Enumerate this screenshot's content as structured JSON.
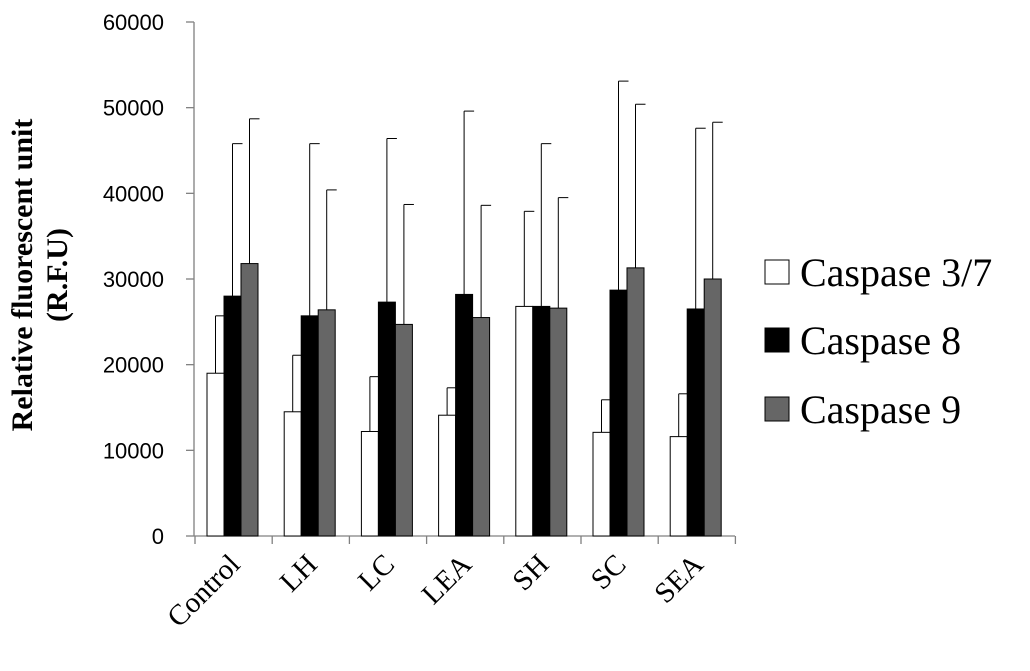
{
  "chart_data": {
    "type": "bar",
    "title": "",
    "xlabel": "",
    "ylabel": [
      "Relative fluorescent unit",
      "(R.F.U)"
    ],
    "ylim": [
      0,
      60000
    ],
    "yticks": [
      0,
      10000,
      20000,
      30000,
      40000,
      50000,
      60000
    ],
    "categories": [
      "Control",
      "LH",
      "LC",
      "LEA",
      "SH",
      "SC",
      "SEA"
    ],
    "series": [
      {
        "name": "Caspase 3/7",
        "color": "#ffffff",
        "values": [
          19000,
          14500,
          12200,
          14100,
          26800,
          12100,
          11600
        ],
        "error": [
          6700,
          6600,
          6400,
          3200,
          11100,
          3800,
          5000
        ]
      },
      {
        "name": "Caspase 8",
        "color": "#000000",
        "values": [
          28000,
          25700,
          27300,
          28200,
          26800,
          28700,
          26500
        ],
        "error": [
          17800,
          20100,
          19100,
          21400,
          19000,
          24400,
          21100
        ]
      },
      {
        "name": "Caspase 9",
        "color": "#666666",
        "values": [
          31800,
          26400,
          24700,
          25500,
          26600,
          31300,
          30000
        ],
        "error": [
          16900,
          14000,
          14000,
          13100,
          12900,
          19100,
          18300
        ]
      }
    ],
    "legend_position": "right",
    "grid": false
  }
}
